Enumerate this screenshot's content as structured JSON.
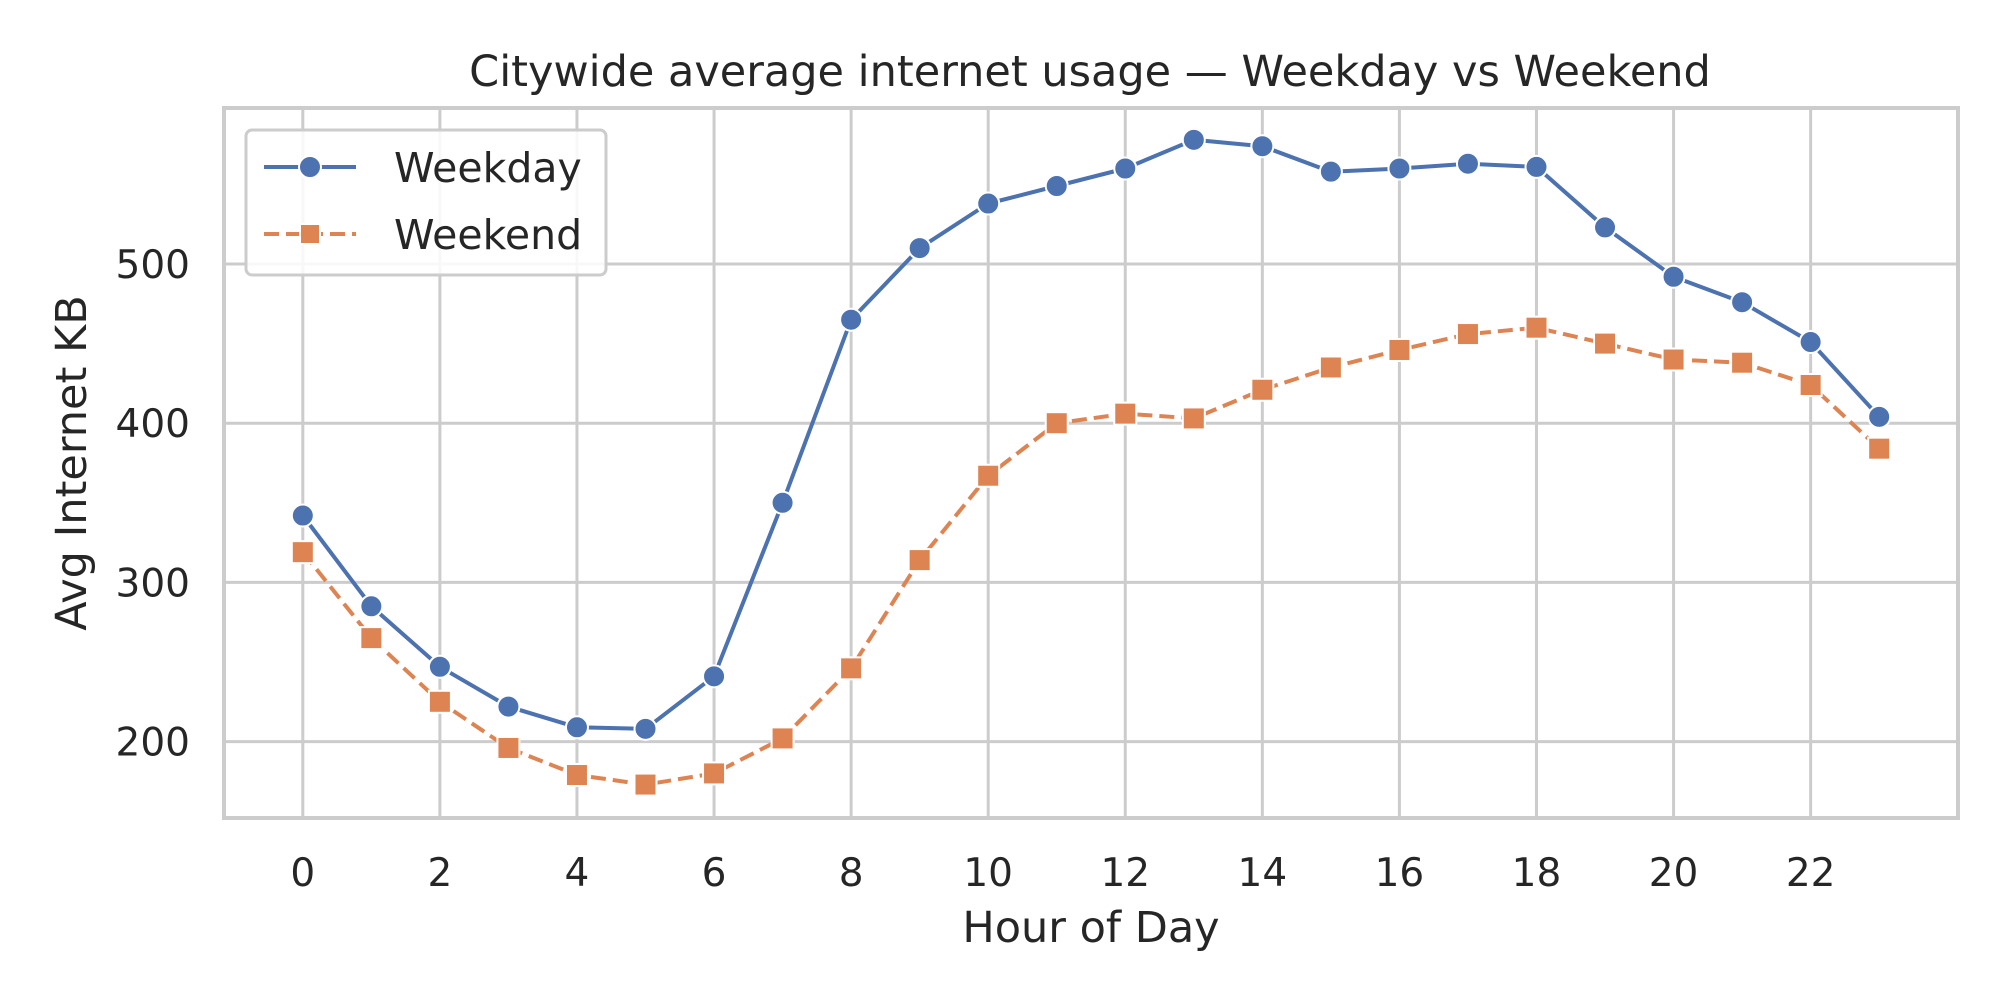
{
  "chart_data": {
    "type": "line",
    "title": "Citywide average internet usage — Weekday vs Weekend",
    "xlabel": "Hour of Day",
    "ylabel": "Avg Internet KB",
    "x": [
      0,
      1,
      2,
      3,
      4,
      5,
      6,
      7,
      8,
      9,
      10,
      11,
      12,
      13,
      14,
      15,
      16,
      17,
      18,
      19,
      20,
      21,
      22,
      23
    ],
    "x_ticks": [
      0,
      2,
      4,
      6,
      8,
      10,
      12,
      14,
      16,
      18,
      20,
      22
    ],
    "y_ticks": [
      200,
      300,
      400,
      500
    ],
    "xlim": [
      -1.15,
      24.15
    ],
    "ylim": [
      152,
      598
    ],
    "grid": true,
    "legend_position": "top-left",
    "series": [
      {
        "name": "Weekday",
        "color": "#4c72b0",
        "marker": "circle",
        "linestyle": "solid",
        "values": [
          342,
          285,
          247,
          222,
          209,
          208,
          241,
          350,
          465,
          510,
          538,
          549,
          560,
          578,
          574,
          558,
          560,
          563,
          561,
          523,
          492,
          476,
          451,
          404
        ]
      },
      {
        "name": "Weekend",
        "color": "#dd8452",
        "marker": "square",
        "linestyle": "dashed",
        "values": [
          319,
          265,
          225,
          196,
          179,
          173,
          180,
          202,
          246,
          314,
          367,
          400,
          406,
          403,
          421,
          435,
          446,
          456,
          460,
          450,
          440,
          438,
          424,
          384
        ]
      }
    ]
  }
}
